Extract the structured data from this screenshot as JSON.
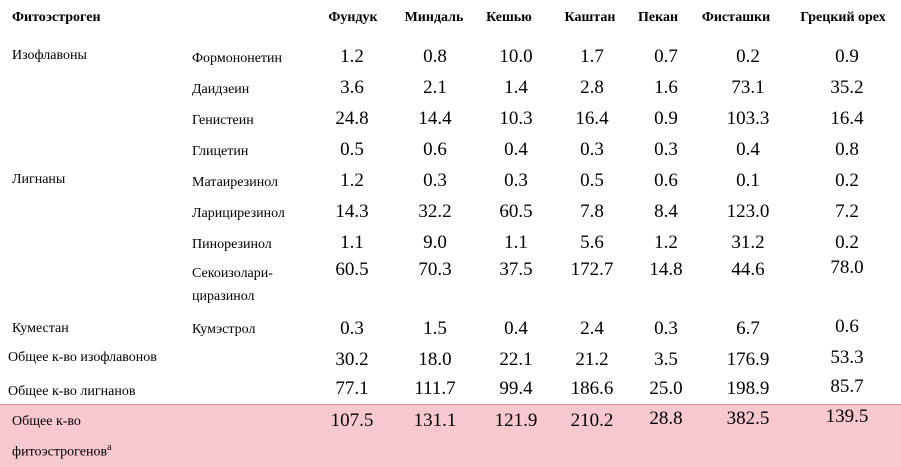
{
  "header": {
    "label": "Фитоэстроген",
    "columns": [
      "Фундук",
      "Миндаль",
      "Кешью",
      "Каштан",
      "Пекан",
      "Фисташки",
      "Грецкий орех"
    ]
  },
  "rows": [
    {
      "category": "Изофлавоны",
      "compound": "Формононетин",
      "values": [
        "1.2",
        "0.8",
        "10.0",
        "1.7",
        "0.7",
        "0.2",
        "0.9"
      ]
    },
    {
      "category": "",
      "compound": "Даидзеин",
      "values": [
        "3.6",
        "2.1",
        "1.4",
        "2.8",
        "1.6",
        "73.1",
        "35.2"
      ]
    },
    {
      "category": "",
      "compound": "Генистеин",
      "values": [
        "24.8",
        "14.4",
        "10.3",
        "16.4",
        "0.9",
        "103.3",
        "16.4"
      ]
    },
    {
      "category": "",
      "compound": "Глицетин",
      "values": [
        "0.5",
        "0.6",
        "0.4",
        "0.3",
        "0.3",
        "0.4",
        "0.8"
      ]
    },
    {
      "category": "Лигнаны",
      "compound": "Матаирезинол",
      "values": [
        "1.2",
        "0.3",
        "0.3",
        "0.5",
        "0.6",
        "0.1",
        "0.2"
      ]
    },
    {
      "category": "",
      "compound": "Ларицирезинол",
      "values": [
        "14.3",
        "32.2",
        "60.5",
        "7.8",
        "8.4",
        "123.0",
        "7.2"
      ]
    },
    {
      "category": "",
      "compound": "Пинорезинол",
      "values": [
        "1.1",
        "9.0",
        "1.1",
        "5.6",
        "1.2",
        "31.2",
        "0.2"
      ]
    },
    {
      "category": "",
      "compound": "Секоизолари-",
      "compound2": "циразинол",
      "values": [
        "60.5",
        "70.3",
        "37.5",
        "172.7",
        "14.8",
        "44.6",
        "78.0"
      ]
    },
    {
      "category": "Куместан",
      "compound": "Кумэстрол",
      "values": [
        "0.3",
        "1.5",
        "0.4",
        "2.4",
        "0.3",
        "6.7",
        "0.6"
      ]
    }
  ],
  "totals": [
    {
      "label": "Общее к-во изофлавонов",
      "values": [
        "30.2",
        "18.0",
        "22.1",
        "21.2",
        "3.5",
        "176.9",
        "53.3"
      ]
    },
    {
      "label": "Общее к-во лигнанов",
      "values": [
        "77.1",
        "111.7",
        "99.4",
        "186.6",
        "25.0",
        "198.9",
        "85.7"
      ]
    }
  ],
  "grand_total": {
    "label_line1": "Общее к-во",
    "label_line2": "фитоэстрогенов",
    "footnote_mark": "a",
    "values": [
      "107.5",
      "131.1",
      "121.9",
      "210.2",
      "28.8",
      "382.5",
      "139.5"
    ],
    "highlight_color": "#f8c8cf"
  }
}
